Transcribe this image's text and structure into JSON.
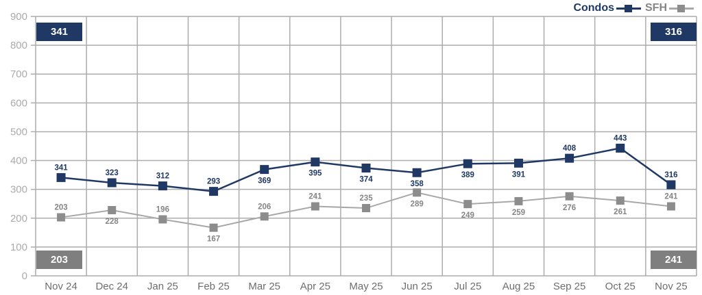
{
  "chart_data": {
    "type": "line",
    "title": "",
    "categories": [
      "Nov 24",
      "Dec 24",
      "Jan 25",
      "Feb 25",
      "Mar 25",
      "Apr 25",
      "May 25",
      "Jun 25",
      "Jul 25",
      "Aug 25",
      "Sep 25",
      "Oct 25",
      "Nov 25"
    ],
    "series": [
      {
        "name": "Condos",
        "color": "#1F3864",
        "line_color": "#1F3864",
        "label_color": "#1F3864",
        "values": [
          341,
          323,
          312,
          293,
          369,
          395,
          374,
          358,
          389,
          391,
          408,
          443,
          316
        ],
        "label_positions": [
          "above",
          "above",
          "above",
          "above",
          "below",
          "below",
          "below",
          "below",
          "below",
          "below",
          "above",
          "above",
          "above"
        ]
      },
      {
        "name": "SFH",
        "color": "#8C8C8C",
        "line_color": "#A8A8A8",
        "label_color": "#858585",
        "values": [
          203,
          228,
          196,
          167,
          206,
          241,
          235,
          289,
          249,
          259,
          276,
          261,
          241
        ],
        "label_positions": [
          "above",
          "below",
          "above",
          "below",
          "above",
          "above",
          "above",
          "below",
          "below",
          "below",
          "below",
          "below",
          "above"
        ]
      }
    ],
    "ylim": [
      0,
      900
    ],
    "ytick_step": 100,
    "ytick_labels": [
      "0",
      "100",
      "200",
      "300",
      "400",
      "500",
      "600",
      "700",
      "800",
      "900"
    ],
    "grid": true,
    "legend_position": "top-right"
  },
  "badges": {
    "top_left": "341",
    "top_right": "316",
    "bottom_left": "203",
    "bottom_right": "241"
  },
  "colors": {
    "condos_navy": "#1F3864",
    "sfh_gray": "#8C8C8C",
    "badge_gray": "#7F7F7F",
    "grid_gray": "#ACACAC"
  }
}
